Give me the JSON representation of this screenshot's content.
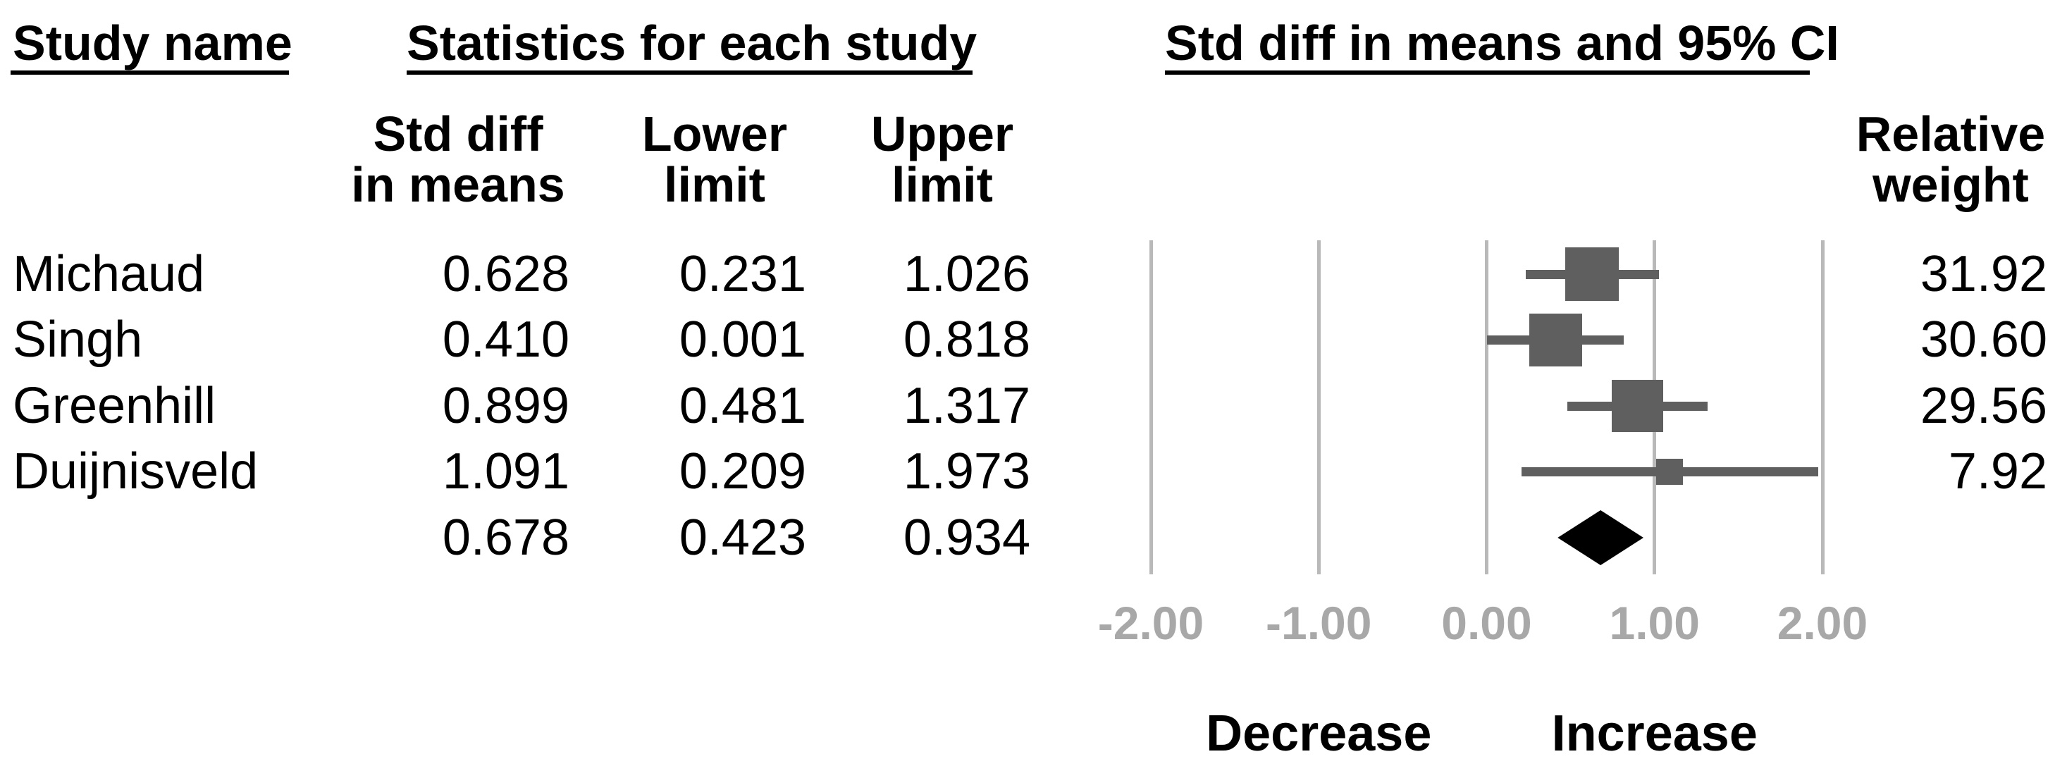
{
  "table": {
    "study_col_header": "Study name",
    "stats_group_header": "Statistics for each study",
    "plot_group_header": "Std diff in means and 95% CI",
    "col_headers": {
      "std_diff": [
        "Std diff",
        "in means"
      ],
      "lower": [
        "Lower",
        "limit"
      ],
      "upper": [
        "Upper",
        "limit"
      ],
      "weight": [
        "Relative",
        "weight"
      ]
    },
    "rows": [
      {
        "study": "Michaud",
        "std_diff": "0.628",
        "lower": "0.231",
        "upper": "1.026",
        "weight": "31.92"
      },
      {
        "study": "Singh",
        "std_diff": "0.410",
        "lower": "0.001",
        "upper": "0.818",
        "weight": "30.60"
      },
      {
        "study": "Greenhill",
        "std_diff": "0.899",
        "lower": "0.481",
        "upper": "1.317",
        "weight": "29.56"
      },
      {
        "study": "Duijnisveld",
        "std_diff": "1.091",
        "lower": "0.209",
        "upper": "1.973",
        "weight": "7.92"
      }
    ],
    "summary_row": {
      "study": "",
      "std_diff": "0.678",
      "lower": "0.423",
      "upper": "0.934",
      "weight": ""
    }
  },
  "chart_data": {
    "type": "forest",
    "title": "Std diff in means and 95% CI",
    "xlabel": "Std diff in means",
    "xlim": [
      -2,
      2
    ],
    "x_tick_values": [
      -2,
      -1,
      0,
      1,
      2
    ],
    "x_ticks": [
      "-2.00",
      "-1.00",
      "0.00",
      "1.00",
      "2.00"
    ],
    "grid": true,
    "studies": [
      {
        "name": "Michaud",
        "mean": 0.628,
        "lower": 0.231,
        "upper": 1.026,
        "weight": 31.92
      },
      {
        "name": "Singh",
        "mean": 0.41,
        "lower": 0.001,
        "upper": 0.818,
        "weight": 30.6
      },
      {
        "name": "Greenhill",
        "mean": 0.899,
        "lower": 0.481,
        "upper": 1.317,
        "weight": 29.56
      },
      {
        "name": "Duijnisveld",
        "mean": 1.091,
        "lower": 0.209,
        "upper": 1.973,
        "weight": 7.92
      }
    ],
    "summary": {
      "mean": 0.678,
      "lower": 0.423,
      "upper": 0.934
    },
    "direction_labels": {
      "left": "Decrease",
      "left_x": -1,
      "right": "Increase",
      "right_x": 1
    },
    "colors": {
      "marker": "#5f5f5f",
      "ci_line": "#5f5f5f",
      "summary_diamond": "#000000",
      "gridline": "#b9b9b9",
      "tick_label": "#a8a8a8",
      "text": "#000000"
    }
  }
}
